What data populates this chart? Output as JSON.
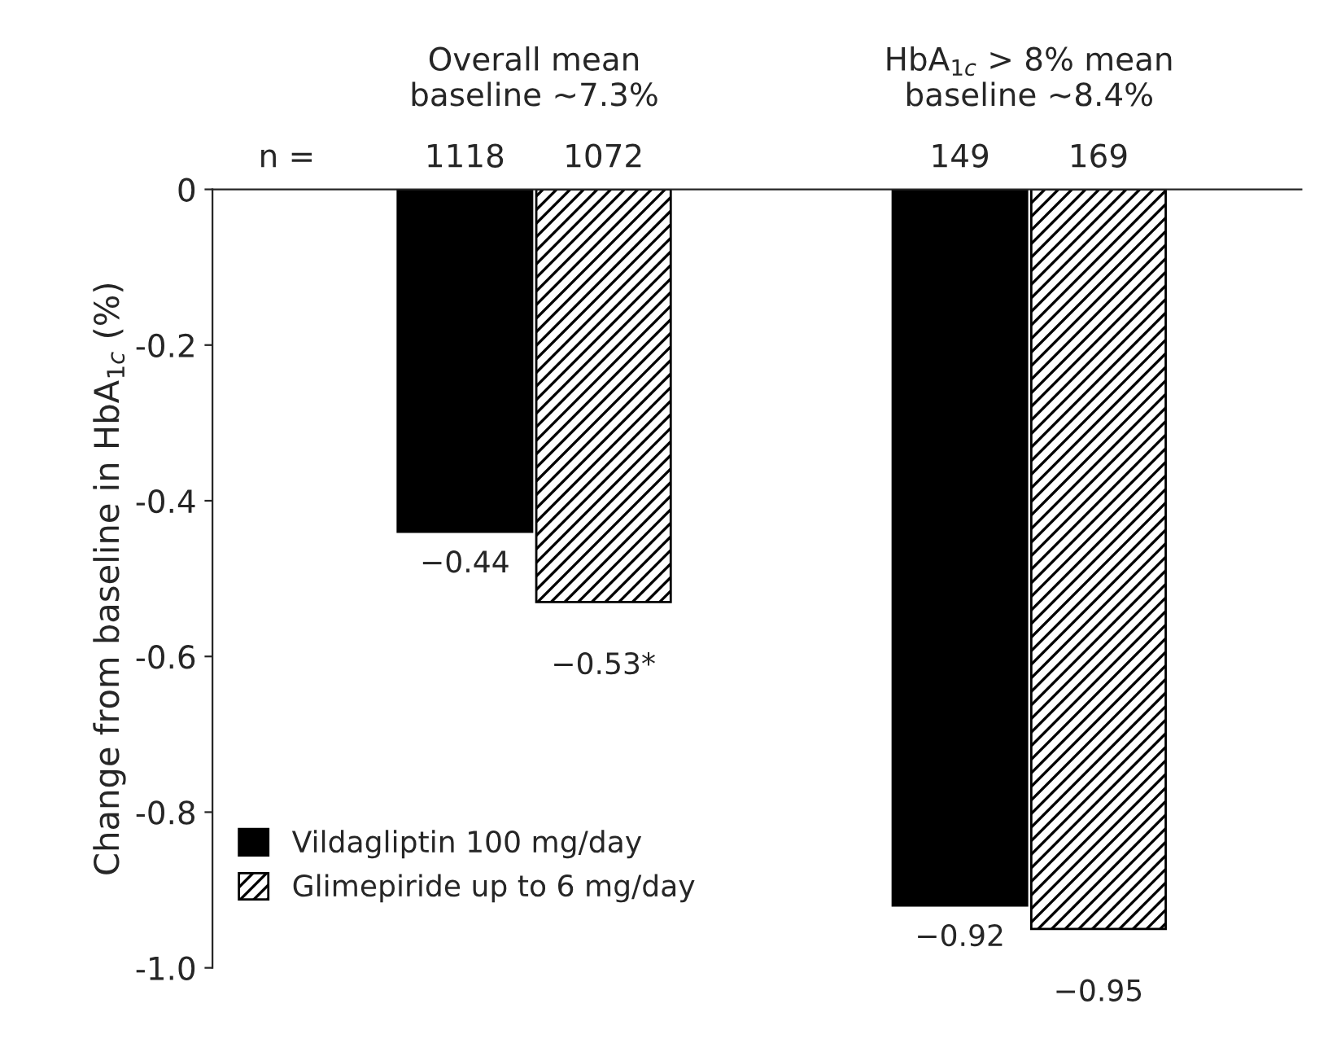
{
  "chart_data": {
    "type": "bar",
    "categories": [
      "Overall mean\nbaseline ~7.3%",
      "HbA$_{1c}$ > 8% mean\nbaseline ~8.4%"
    ],
    "ylabel": "Change from baseline in HbA$_{1c}$ (%)",
    "series": [
      {
        "name": "Vildagliptin 100 mg/day",
        "color": "#000000",
        "values": [
          -0.44,
          -0.92
        ],
        "value_labels": [
          "−0.44",
          "−0.92"
        ]
      },
      {
        "name": "Glimepiride up to 6 mg/day",
        "color": "#000000",
        "values": [
          -0.53,
          -0.95
        ],
        "value_labels": [
          "−0.53*",
          "−0.95"
        ]
      }
    ],
    "annotations": [
      "n =",
      "1118",
      "149",
      "1072",
      "169"
    ],
    "ylim": [
      -1.0,
      0
    ],
    "yticks": [
      {
        "value": -1.0,
        "label": "-1.0"
      },
      {
        "value": -0.8,
        "label": "-0.8"
      },
      {
        "value": -0.6,
        "label": "-0.6"
      },
      {
        "value": -0.4,
        "label": "-0.4"
      },
      {
        "value": -0.2,
        "label": "-0.2"
      },
      0
    ],
    "legend": "bottom left",
    "grid": false
  }
}
